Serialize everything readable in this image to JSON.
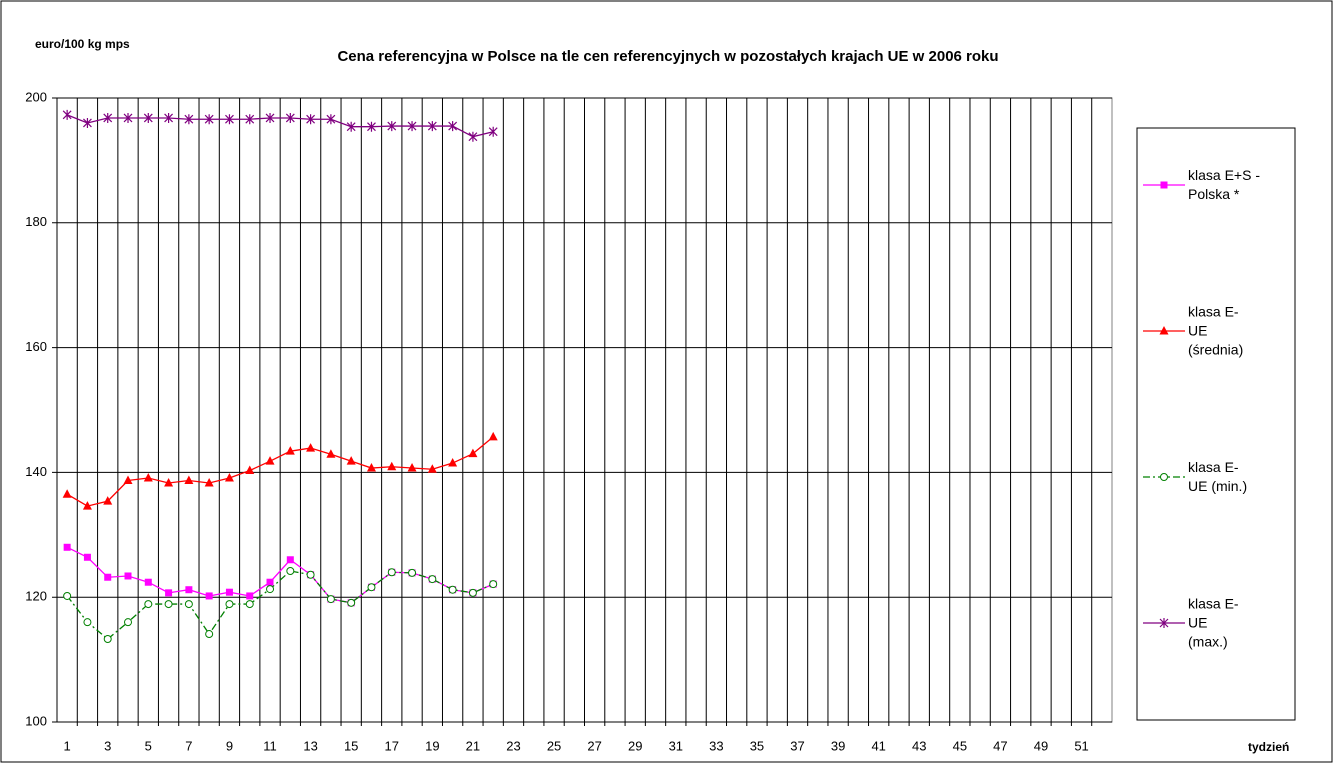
{
  "chart_data": {
    "type": "line",
    "title": "Cena referencyjna w Polsce na tle cen referencyjnych w pozostałych krajach UE w 2006 roku",
    "y_label": "euro/100 kg mps",
    "x_label": "tydzień",
    "categories": [
      "1",
      null,
      "3",
      null,
      "5",
      null,
      "7",
      null,
      "9",
      null,
      "11",
      null,
      "13",
      null,
      "15",
      null,
      "17",
      null,
      "19",
      null,
      "21",
      null,
      "23",
      null,
      "25",
      null,
      "27",
      null,
      "29",
      null,
      "31",
      null,
      "33",
      null,
      "35",
      null,
      "37",
      null,
      "39",
      null,
      "41",
      null,
      "43",
      null,
      "45",
      null,
      "47",
      null,
      "49",
      null,
      "51",
      null
    ],
    "series": [
      {
        "name": "klasa E+S - Polska *",
        "color": "#ff00ff",
        "marker": "square",
        "dash": "solid",
        "values": [
          128.0,
          126.4,
          123.2,
          123.4,
          122.4,
          120.7,
          121.2,
          120.2,
          120.8,
          120.2,
          122.4,
          126.0,
          123.6,
          119.7,
          119.1,
          121.6,
          124.0,
          123.9,
          122.9,
          121.2,
          120.7,
          122.1,
          null,
          null,
          null,
          null,
          null,
          null,
          null,
          null,
          null,
          null,
          null,
          null,
          null,
          null,
          null,
          null,
          null,
          null,
          null,
          null,
          null,
          null,
          null,
          null,
          null,
          null,
          null,
          null,
          null,
          null
        ]
      },
      {
        "name": "klasa E- UE (średnia)",
        "color": "#ff0000",
        "marker": "triangle",
        "dash": "solid",
        "values": [
          136.5,
          134.6,
          135.4,
          138.7,
          139.1,
          138.3,
          138.7,
          138.3,
          139.1,
          140.3,
          141.8,
          143.4,
          143.9,
          142.9,
          141.8,
          140.7,
          140.9,
          140.7,
          140.5,
          141.5,
          143.0,
          145.7,
          null,
          null,
          null,
          null,
          null,
          null,
          null,
          null,
          null,
          null,
          null,
          null,
          null,
          null,
          null,
          null,
          null,
          null,
          null,
          null,
          null,
          null,
          null,
          null,
          null,
          null,
          null,
          null,
          null,
          null
        ]
      },
      {
        "name": "klasa E- UE (min.)",
        "color": "#008000",
        "marker": "circle",
        "dash": "dashdot",
        "values": [
          120.2,
          116.0,
          113.3,
          116.0,
          118.9,
          118.9,
          118.9,
          114.1,
          118.9,
          118.9,
          121.3,
          124.2,
          123.6,
          119.7,
          119.1,
          121.6,
          124.0,
          123.9,
          122.9,
          121.2,
          120.7,
          122.1,
          null,
          null,
          null,
          null,
          null,
          null,
          null,
          null,
          null,
          null,
          null,
          null,
          null,
          null,
          null,
          null,
          null,
          null,
          null,
          null,
          null,
          null,
          null,
          null,
          null,
          null,
          null,
          null,
          null,
          null
        ]
      },
      {
        "name": "klasa E- UE (max.)",
        "color": "#800080",
        "marker": "star",
        "dash": "solid",
        "values": [
          197.3,
          196.0,
          196.8,
          196.8,
          196.8,
          196.8,
          196.6,
          196.6,
          196.6,
          196.6,
          196.8,
          196.8,
          196.6,
          196.6,
          195.4,
          195.4,
          195.5,
          195.5,
          195.5,
          195.5,
          193.8,
          194.6,
          null,
          null,
          null,
          null,
          null,
          null,
          null,
          null,
          null,
          null,
          null,
          null,
          null,
          null,
          null,
          null,
          null,
          null,
          null,
          null,
          null,
          null,
          null,
          null,
          null,
          null,
          null,
          null,
          null,
          null
        ]
      }
    ],
    "ylim": [
      100,
      200
    ],
    "yticks": [
      100,
      120,
      140,
      160,
      180,
      200
    ],
    "grid": true,
    "legend": "right"
  }
}
